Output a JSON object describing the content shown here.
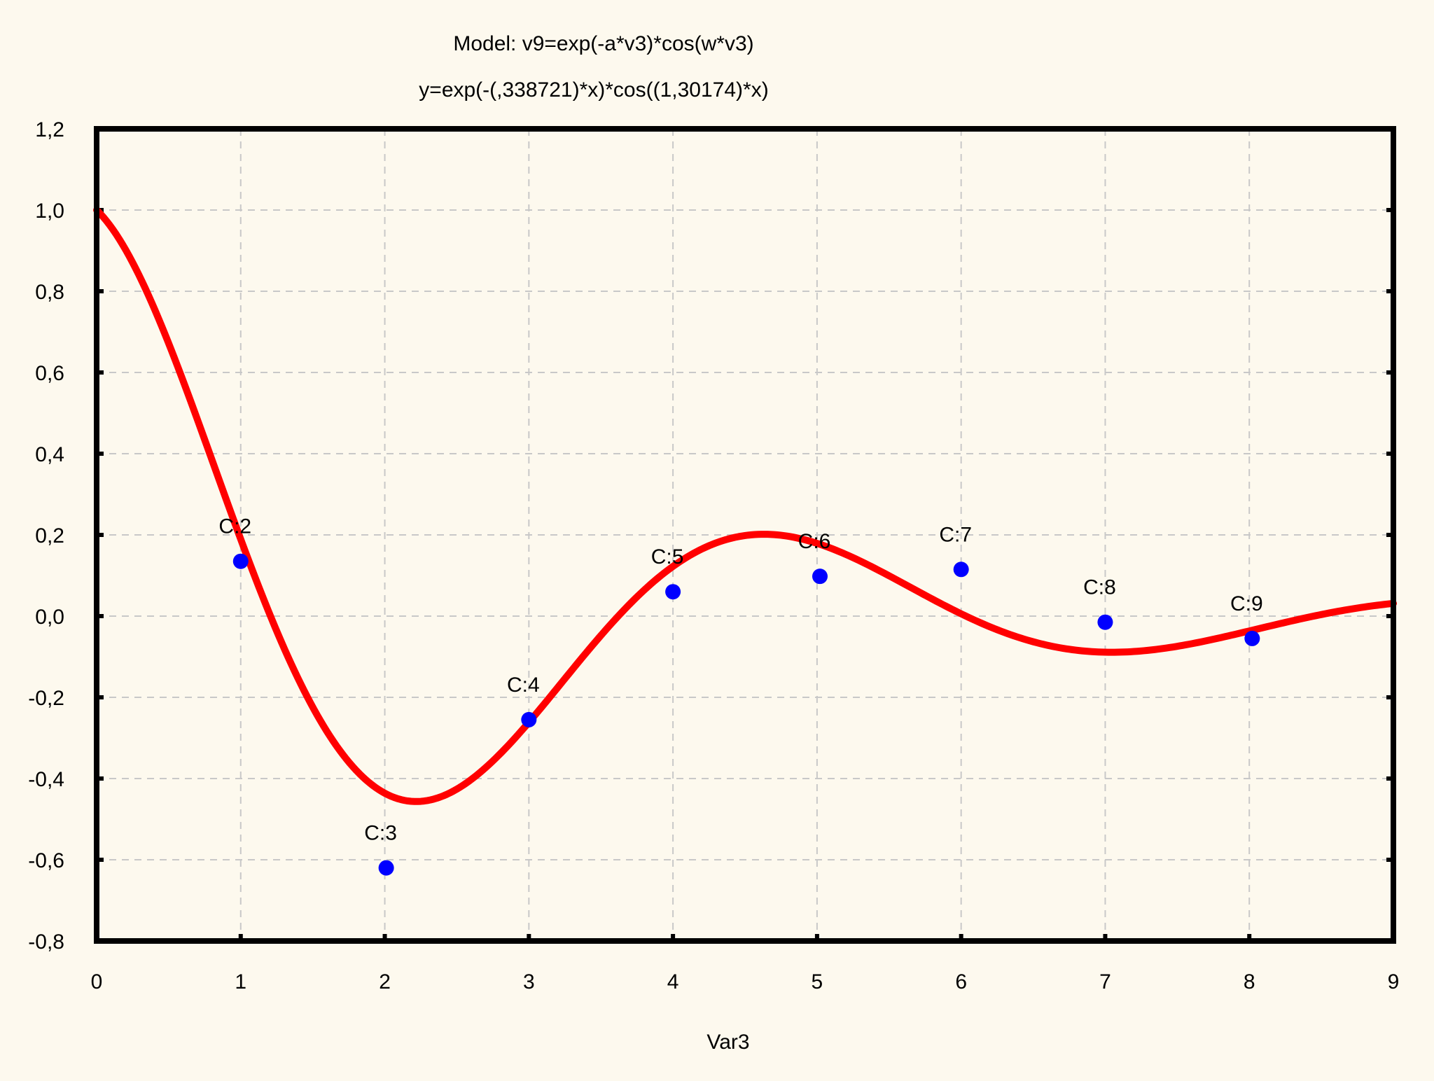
{
  "chart_data": {
    "type": "scatter",
    "title": "Model: v9=exp(-a*v3)*cos(w*v3)",
    "subtitle": "y=exp(-(,338721)*x)*cos((1,30174)*x)",
    "xlabel": "Var3",
    "ylabel": "",
    "xlim": [
      0,
      9
    ],
    "ylim": [
      -0.8,
      1.2
    ],
    "x_ticks": [
      "0",
      "1",
      "2",
      "3",
      "4",
      "5",
      "6",
      "7",
      "8",
      "9"
    ],
    "y_ticks": [
      "1,2",
      "1,0",
      "0,8",
      "0,6",
      "0,4",
      "0,2",
      "0,0",
      "-0,2",
      "-0,4",
      "-0,6",
      "-0,8"
    ],
    "grid": true,
    "points": [
      {
        "label": "C:2",
        "x": 1,
        "y": 0.135
      },
      {
        "label": "C:3",
        "x": 2.01,
        "y": -0.62
      },
      {
        "label": "C:4",
        "x": 3,
        "y": -0.255
      },
      {
        "label": "C:5",
        "x": 4,
        "y": 0.06
      },
      {
        "label": "C:6",
        "x": 5.02,
        "y": 0.098
      },
      {
        "label": "C:7",
        "x": 6,
        "y": 0.115
      },
      {
        "label": "C:8",
        "x": 7,
        "y": -0.015
      },
      {
        "label": "C:9",
        "x": 8.02,
        "y": -0.055
      }
    ],
    "model": {
      "a": 0.338721,
      "w": 1.30174
    },
    "colors": {
      "points": "#0000ff",
      "curve": "#ff0000",
      "frame": "#000000",
      "grid": "#c8c8c8",
      "background": "#fdf9ee"
    }
  }
}
